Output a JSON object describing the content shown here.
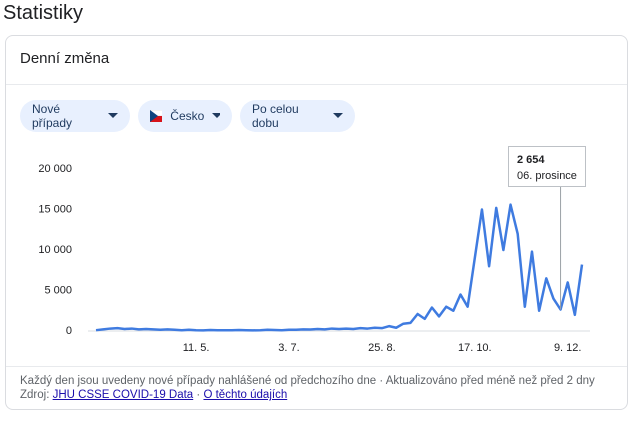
{
  "header": {
    "title": "Statistiky"
  },
  "card": {
    "title": "Denní změna",
    "chips": [
      "Nové případy",
      "Česko",
      "Po celou dobu"
    ],
    "tooltip": {
      "label": "2 654",
      "date": "06. prosince"
    },
    "footer": {
      "note": "Každý den jsou uvedeny nové případy nahlášené od předchozího dne · Aktualizováno před méně než před 2 dny",
      "source_label": "Zdroj:",
      "links": [
        "JHU CSSE COVID-19 Data",
        "O těchto údajích"
      ],
      "separator": "·"
    }
  },
  "chart_data": {
    "type": "line",
    "categories": [
      null,
      null,
      null,
      null,
      null,
      null,
      null,
      null,
      null,
      null,
      null,
      null,
      null,
      null,
      "11. 5.",
      null,
      null,
      null,
      null,
      null,
      null,
      null,
      null,
      null,
      null,
      null,
      null,
      "3. 7.",
      null,
      null,
      null,
      null,
      null,
      null,
      null,
      null,
      null,
      null,
      null,
      null,
      "25. 8.",
      null,
      null,
      null,
      null,
      null,
      null,
      null,
      null,
      null,
      null,
      null,
      null,
      "17. 10.",
      null,
      null,
      null,
      null,
      null,
      null,
      null,
      null,
      null,
      null,
      null,
      null,
      "9. 12.",
      null,
      null
    ],
    "values": [
      100,
      200,
      300,
      350,
      250,
      300,
      200,
      250,
      200,
      150,
      200,
      150,
      100,
      150,
      100,
      80,
      120,
      100,
      90,
      100,
      120,
      100,
      80,
      100,
      150,
      120,
      100,
      150,
      150,
      200,
      180,
      250,
      200,
      300,
      250,
      300,
      250,
      350,
      300,
      400,
      350,
      600,
      400,
      900,
      1000,
      2100,
      1500,
      2900,
      1800,
      3000,
      2500,
      4500,
      3000,
      9000,
      15000,
      8000,
      15200,
      10000,
      15600,
      12000,
      3000,
      9800,
      2500,
      6500,
      4000,
      2654,
      6000,
      2000,
      8200
    ],
    "tooltip_index": 65,
    "color": "#3f7be0",
    "ylim": [
      0,
      20000
    ],
    "yticks": [
      {
        "value": 0,
        "label": "0"
      },
      {
        "value": 5000,
        "label": "5 000"
      },
      {
        "value": 10000,
        "label": "10 000"
      },
      {
        "value": 15000,
        "label": "15 000"
      },
      {
        "value": 20000,
        "label": "20 000"
      }
    ],
    "grid": false
  }
}
